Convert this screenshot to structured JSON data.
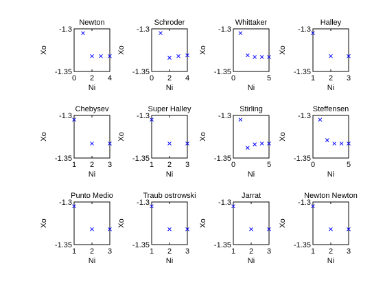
{
  "chart_data": [
    {
      "type": "scatter",
      "title": "Newton",
      "xlabel": "Ni",
      "ylabel": "Xo",
      "xlim": [
        0,
        4
      ],
      "ylim": [
        -1.35,
        -1.3
      ],
      "xticks": [
        "0",
        "2",
        "4"
      ],
      "yticks": [
        "-1.3",
        "-1.35"
      ],
      "series": [
        {
          "x": [
            1,
            2,
            3,
            4
          ],
          "y": [
            -1.305,
            -1.332,
            -1.332,
            -1.332
          ]
        }
      ]
    },
    {
      "type": "scatter",
      "title": "Schroder",
      "xlabel": "Ni",
      "ylabel": "Xo",
      "xlim": [
        0,
        4
      ],
      "ylim": [
        -1.35,
        -1.3
      ],
      "xticks": [
        "0",
        "2",
        "4"
      ],
      "yticks": [
        "-1.3",
        "-1.35"
      ],
      "series": [
        {
          "x": [
            1,
            2,
            3,
            4
          ],
          "y": [
            -1.305,
            -1.334,
            -1.332,
            -1.331
          ]
        }
      ]
    },
    {
      "type": "scatter",
      "title": "Whittaker",
      "xlabel": "Ni",
      "ylabel": "Xo",
      "xlim": [
        0,
        5
      ],
      "ylim": [
        -1.35,
        -1.3
      ],
      "xticks": [
        "0",
        "5"
      ],
      "yticks": [
        "-1.3",
        "-1.35"
      ],
      "series": [
        {
          "x": [
            1,
            2,
            3,
            4,
            5
          ],
          "y": [
            -1.305,
            -1.331,
            -1.333,
            -1.333,
            -1.333
          ]
        }
      ]
    },
    {
      "type": "scatter",
      "title": "Halley",
      "xlabel": "Ni",
      "ylabel": "Xo",
      "xlim": [
        1,
        3
      ],
      "ylim": [
        -1.35,
        -1.3
      ],
      "xticks": [
        "1",
        "2",
        "3"
      ],
      "yticks": [
        "-1.3",
        "-1.35"
      ],
      "series": [
        {
          "x": [
            1,
            2,
            3
          ],
          "y": [
            -1.305,
            -1.332,
            -1.332
          ]
        }
      ]
    },
    {
      "type": "scatter",
      "title": "Chebysev",
      "xlabel": "Ni",
      "ylabel": "Xo",
      "xlim": [
        1,
        3
      ],
      "ylim": [
        -1.35,
        -1.3
      ],
      "xticks": [
        "1",
        "2",
        "3"
      ],
      "yticks": [
        "-1.3",
        "-1.35"
      ],
      "series": [
        {
          "x": [
            1,
            2,
            3
          ],
          "y": [
            -1.305,
            -1.333,
            -1.333
          ]
        }
      ]
    },
    {
      "type": "scatter",
      "title": "Super Halley",
      "xlabel": "Ni",
      "ylabel": "Xo",
      "xlim": [
        1,
        3
      ],
      "ylim": [
        -1.35,
        -1.3
      ],
      "xticks": [
        "1",
        "2",
        "3"
      ],
      "yticks": [
        "-1.3",
        "-1.35"
      ],
      "series": [
        {
          "x": [
            1,
            2,
            3
          ],
          "y": [
            -1.305,
            -1.333,
            -1.333
          ]
        }
      ]
    },
    {
      "type": "scatter",
      "title": "Stirling",
      "xlabel": "Ni",
      "ylabel": "Xo",
      "xlim": [
        0,
        5
      ],
      "ylim": [
        -1.35,
        -1.3
      ],
      "xticks": [
        "0",
        "5"
      ],
      "yticks": [
        "-1.3",
        "-1.35"
      ],
      "series": [
        {
          "x": [
            1,
            2,
            3,
            4,
            5
          ],
          "y": [
            -1.305,
            -1.338,
            -1.334,
            -1.333,
            -1.333
          ]
        }
      ]
    },
    {
      "type": "scatter",
      "title": "Steffensen",
      "xlabel": "Ni",
      "ylabel": "Xo",
      "xlim": [
        0,
        5
      ],
      "ylim": [
        -1.35,
        -1.3
      ],
      "xticks": [
        "0",
        "5"
      ],
      "yticks": [
        "-1.3",
        "-1.35"
      ],
      "series": [
        {
          "x": [
            1,
            2,
            3,
            4,
            5
          ],
          "y": [
            -1.305,
            -1.329,
            -1.333,
            -1.333,
            -1.333
          ]
        }
      ]
    },
    {
      "type": "scatter",
      "title": "Punto Medio",
      "xlabel": "Ni",
      "ylabel": "Xo",
      "xlim": [
        1,
        3
      ],
      "ylim": [
        -1.35,
        -1.3
      ],
      "xticks": [
        "1",
        "2",
        "3"
      ],
      "yticks": [
        "-1.3",
        "-1.35"
      ],
      "series": [
        {
          "x": [
            1,
            2,
            3
          ],
          "y": [
            -1.305,
            -1.332,
            -1.332
          ]
        }
      ]
    },
    {
      "type": "scatter",
      "title": "Traub ostrowski",
      "xlabel": "Ni",
      "ylabel": "Xo",
      "xlim": [
        1,
        3
      ],
      "ylim": [
        -1.35,
        -1.3
      ],
      "xticks": [
        "1",
        "2",
        "3"
      ],
      "yticks": [
        "-1.3",
        "-1.35"
      ],
      "series": [
        {
          "x": [
            1,
            2,
            3
          ],
          "y": [
            -1.305,
            -1.332,
            -1.332
          ]
        }
      ]
    },
    {
      "type": "scatter",
      "title": "Jarrat",
      "xlabel": "Ni",
      "ylabel": "Xo",
      "xlim": [
        1,
        3
      ],
      "ylim": [
        -1.35,
        -1.3
      ],
      "xticks": [
        "1",
        "2",
        "3"
      ],
      "yticks": [
        "-1.3",
        "-1.35"
      ],
      "series": [
        {
          "x": [
            1,
            2,
            3
          ],
          "y": [
            -1.305,
            -1.332,
            -1.332
          ]
        }
      ]
    },
    {
      "type": "scatter",
      "title": "Newton Newton",
      "xlabel": "Ni",
      "ylabel": "Xo",
      "xlim": [
        1,
        3
      ],
      "ylim": [
        -1.35,
        -1.3
      ],
      "xticks": [
        "1",
        "2",
        "3"
      ],
      "yticks": [
        "-1.3",
        "-1.35"
      ],
      "series": [
        {
          "x": [
            1,
            2,
            3
          ],
          "y": [
            -1.305,
            -1.332,
            -1.332
          ]
        }
      ]
    }
  ],
  "colors": {
    "marker": "#0000ff",
    "axis": "#000000",
    "background": "#ffffff"
  }
}
